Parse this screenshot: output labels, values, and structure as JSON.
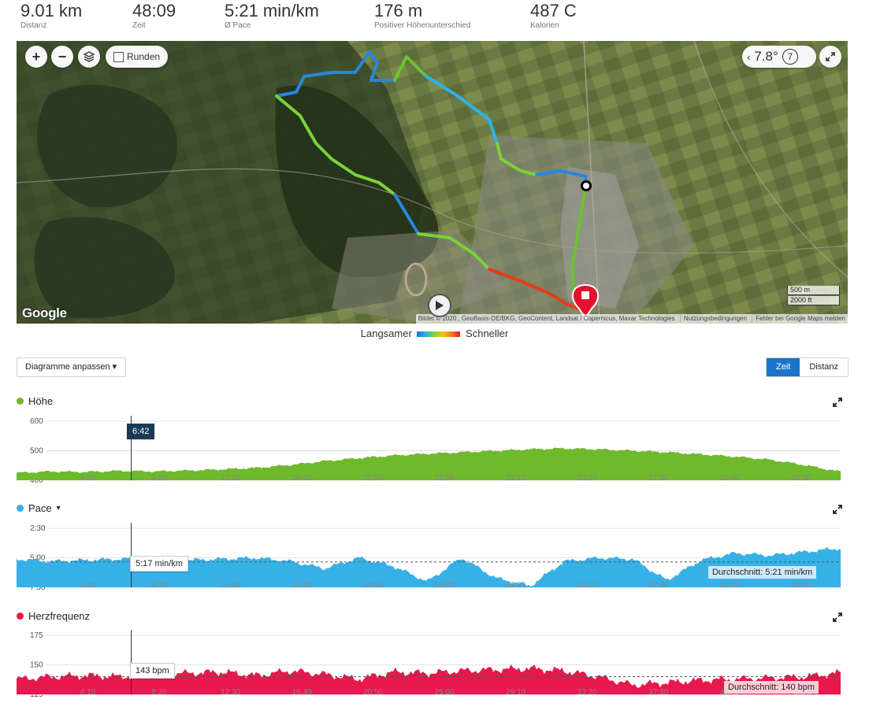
{
  "stats": [
    {
      "value": "9.01 km",
      "label": "Distanz"
    },
    {
      "value": "48:09",
      "label": "Zeit"
    },
    {
      "value": "5:21 min/km",
      "label": "Ø Pace"
    },
    {
      "value": "176 m",
      "label": "Positiver Höhenunterschied"
    },
    {
      "value": "487 C",
      "label": "Kalorien"
    }
  ],
  "map": {
    "zoom_in": "+",
    "zoom_out": "−",
    "laps_label": "Runden",
    "weather_temp": "7.8°",
    "weather_wind": "7",
    "google_logo": "Google",
    "scale_metric": "500 m",
    "scale_imperial": "2000 ft",
    "attribution": [
      "Bilder © 2020 , GeoBasis-DE/BKG, GeoContent, Landsat / Copernicus, Maxar Technologies",
      "Nutzungsbedingungen",
      "Fehler bei Google Maps melden"
    ]
  },
  "legend": {
    "slower": "Langsamer",
    "faster": "Schneller"
  },
  "controls": {
    "customize_label": "Diagramme anpassen ▾",
    "toggle_time": "Zeit",
    "toggle_distance": "Distanz"
  },
  "cursor_time": "6:42",
  "colors": {
    "elevation": "#6fba2c",
    "pace": "#36b1e8",
    "heart_rate": "#e8174c",
    "accent": "#1a74c9"
  },
  "chart_data": [
    {
      "type": "area",
      "title": "Höhe",
      "ylim": [
        400,
        600
      ],
      "yticks": [
        "600",
        "500",
        "400"
      ],
      "xticks": [
        "4:10",
        "8:20",
        "12:30",
        "16:40",
        "20:50",
        "25:00",
        "29:10",
        "33:20",
        "37:30",
        "41:40",
        "45:50"
      ],
      "x_minutes": [
        0,
        2,
        4,
        6,
        8,
        10,
        12,
        14,
        16,
        18,
        20,
        22,
        24,
        26,
        28,
        30,
        32,
        34,
        36,
        38,
        40,
        42,
        44,
        46,
        48
      ],
      "values": [
        425,
        430,
        428,
        432,
        430,
        433,
        437,
        442,
        452,
        465,
        475,
        484,
        490,
        495,
        500,
        505,
        508,
        505,
        500,
        495,
        488,
        480,
        470,
        452,
        430
      ],
      "cursor_label": "6:42"
    },
    {
      "type": "area",
      "title": "Pace",
      "title_suffix": "▾",
      "yticks": [
        "2:30",
        "5:00",
        "7:30"
      ],
      "ylim_min_per_km": [
        2.5,
        7.5
      ],
      "inverted": true,
      "xticks": [
        "4:10",
        "8:20",
        "12:30",
        "16:40",
        "20:50",
        "25:00",
        "29:10",
        "33:20",
        "37:30",
        "41:40",
        "45:50"
      ],
      "x_minutes": [
        0,
        2,
        4,
        6,
        8,
        10,
        12,
        14,
        16,
        18,
        20,
        22,
        24,
        26,
        28,
        30,
        32,
        34,
        36,
        38,
        40,
        42,
        44,
        46,
        48
      ],
      "values": [
        5.1,
        5.3,
        5.2,
        5.1,
        5.0,
        5.2,
        5.1,
        5.0,
        5.3,
        5.9,
        5.0,
        5.7,
        7.0,
        5.0,
        6.7,
        7.4,
        5.3,
        5.0,
        5.1,
        6.9,
        5.2,
        4.6,
        4.8,
        4.5,
        4.2
      ],
      "cursor_label": "5:17 min/km",
      "average_label": "Durchschnitt: 5:21 min/km",
      "average": 5.35
    },
    {
      "type": "area",
      "title": "Herzfrequenz",
      "ylim": [
        125,
        175
      ],
      "yticks": [
        "175",
        "150",
        "125"
      ],
      "xticks": [
        "4:10",
        "8:20",
        "12:30",
        "16:40",
        "20:50",
        "25:00",
        "29:10",
        "33:20",
        "37:30",
        "41:40",
        "45:50"
      ],
      "x_minutes": [
        0,
        2,
        4,
        6,
        8,
        10,
        12,
        14,
        16,
        18,
        20,
        22,
        24,
        26,
        28,
        30,
        32,
        34,
        36,
        38,
        40,
        42,
        44,
        46,
        48
      ],
      "values": [
        138,
        140,
        141,
        140,
        142,
        143,
        144,
        141,
        145,
        142,
        138,
        144,
        143,
        145,
        146,
        147,
        145,
        140,
        133,
        135,
        137,
        138,
        139,
        140,
        143
      ],
      "cursor_label": "143 bpm",
      "average_label": "Durchschnitt: 140 bpm",
      "average": 140
    }
  ]
}
